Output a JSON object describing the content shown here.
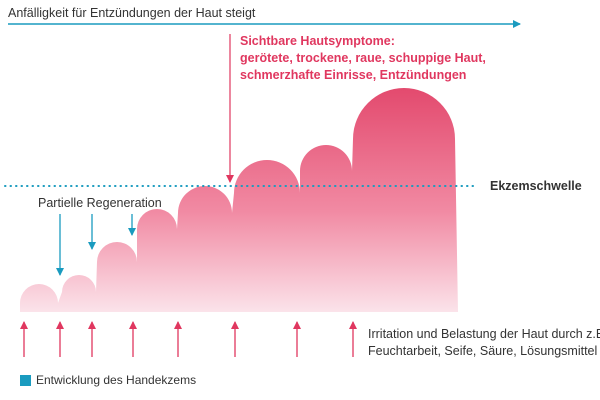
{
  "top_axis_label": "Anfälligkeit für Entzündungen der Haut steigt",
  "symptoms": {
    "title": "Sichtbare Hautsymptome:",
    "line1": "gerötete, trockene, raue, schuppige Haut,",
    "line2": "schmerzhafte Einrisse, Entzündungen"
  },
  "threshold_label": "Ekzemschwelle",
  "regeneration_label": "Partielle Regeneration",
  "irritation": {
    "line1": "Irritation und Belastung der Haut durch z.B.",
    "line2": "Feuchtarbeit, Seife, Säure, Lösungsmittel"
  },
  "legend": {
    "label": "Entwicklung des Handekzems"
  },
  "colors": {
    "accent_blue": "#1a9bbf",
    "symptom_red": "#e0375f",
    "fill_top": "#e34a6e",
    "fill_bottom": "#fbe3ea",
    "text_dark": "#333333"
  }
}
